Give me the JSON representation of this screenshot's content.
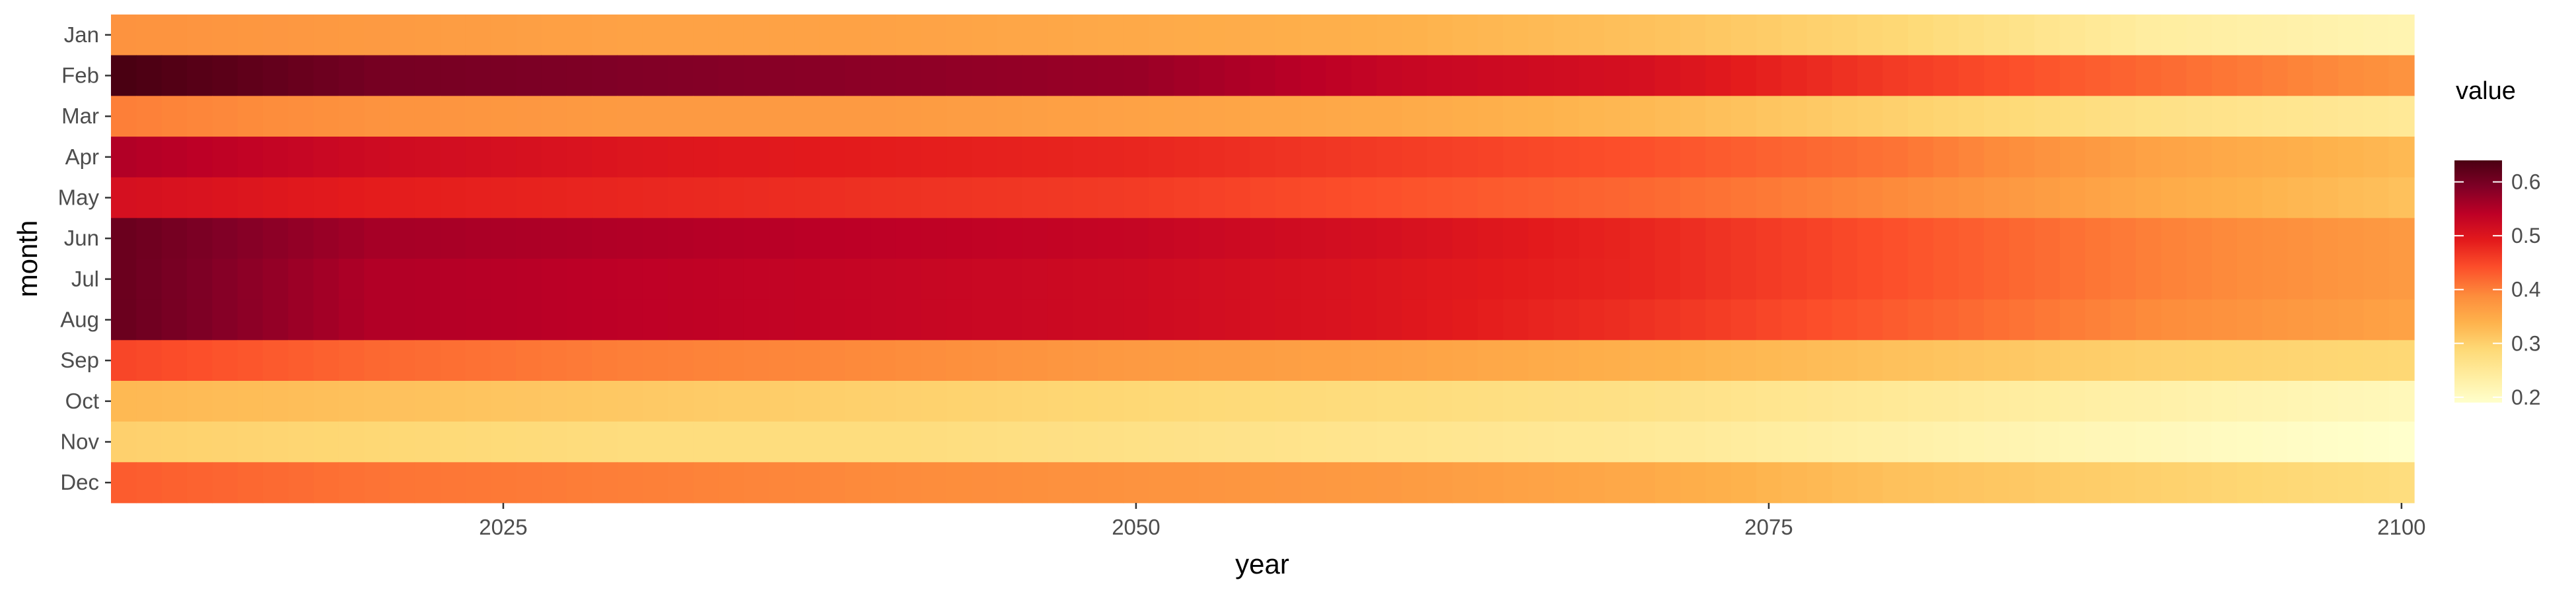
{
  "chart_data": {
    "type": "heatmap",
    "xlabel": "year",
    "ylabel": "month",
    "x_tick_labels": [
      "2025",
      "2050",
      "2075",
      "2100"
    ],
    "x_ticks": [
      2025,
      2050,
      2075,
      2100
    ],
    "xlim": [
      2009.5,
      2100.5
    ],
    "y_categories": [
      "Jan",
      "Feb",
      "Mar",
      "Apr",
      "May",
      "Jun",
      "Jul",
      "Aug",
      "Sep",
      "Oct",
      "Nov",
      "Dec"
    ],
    "x_years": {
      "start": 2010,
      "end": 2100
    },
    "value_keypoints": {
      "years": [
        2010,
        2020,
        2030,
        2040,
        2050,
        2060,
        2070,
        2080,
        2090,
        2100
      ],
      "series": [
        {
          "name": "Jan",
          "values": [
            0.38,
            0.37,
            0.36,
            0.36,
            0.35,
            0.34,
            0.32,
            0.29,
            0.24,
            0.22
          ]
        },
        {
          "name": "Feb",
          "values": [
            0.64,
            0.6,
            0.59,
            0.58,
            0.57,
            0.53,
            0.51,
            0.46,
            0.42,
            0.38
          ]
        },
        {
          "name": "Mar",
          "values": [
            0.4,
            0.38,
            0.37,
            0.37,
            0.36,
            0.35,
            0.33,
            0.3,
            0.27,
            0.25
          ]
        },
        {
          "name": "Apr",
          "values": [
            0.55,
            0.52,
            0.5,
            0.49,
            0.48,
            0.46,
            0.44,
            0.41,
            0.36,
            0.33
          ]
        },
        {
          "name": "May",
          "values": [
            0.51,
            0.49,
            0.48,
            0.47,
            0.46,
            0.44,
            0.42,
            0.39,
            0.35,
            0.32
          ]
        },
        {
          "name": "Jun",
          "values": [
            0.61,
            0.56,
            0.55,
            0.54,
            0.53,
            0.51,
            0.48,
            0.44,
            0.4,
            0.37
          ]
        },
        {
          "name": "Jul",
          "values": [
            0.61,
            0.55,
            0.54,
            0.53,
            0.52,
            0.5,
            0.48,
            0.44,
            0.4,
            0.37
          ]
        },
        {
          "name": "Aug",
          "values": [
            0.61,
            0.55,
            0.54,
            0.53,
            0.52,
            0.5,
            0.47,
            0.43,
            0.39,
            0.36
          ]
        },
        {
          "name": "Sep",
          "values": [
            0.45,
            0.42,
            0.4,
            0.39,
            0.37,
            0.36,
            0.34,
            0.32,
            0.3,
            0.29
          ]
        },
        {
          "name": "Oct",
          "values": [
            0.33,
            0.32,
            0.31,
            0.3,
            0.29,
            0.28,
            0.27,
            0.25,
            0.23,
            0.21
          ]
        },
        {
          "name": "Nov",
          "values": [
            0.3,
            0.29,
            0.28,
            0.28,
            0.27,
            0.26,
            0.25,
            0.23,
            0.21,
            0.19
          ]
        },
        {
          "name": "Dec",
          "values": [
            0.43,
            0.41,
            0.4,
            0.39,
            0.38,
            0.37,
            0.35,
            0.32,
            0.3,
            0.28
          ]
        }
      ]
    },
    "legend": {
      "title": "value",
      "placement": "right",
      "ticks": [
        0.2,
        0.3,
        0.4,
        0.5,
        0.6
      ],
      "tick_labels": [
        "0.2",
        "0.3",
        "0.4",
        "0.5",
        "0.6"
      ],
      "range": [
        0.19,
        0.64
      ]
    },
    "colorscale": {
      "name": "YlOrRd",
      "stops": [
        "#ffffcc",
        "#ffeda0",
        "#fed976",
        "#feb24c",
        "#fd8d3c",
        "#fc4e2a",
        "#e31a1c",
        "#bd0026",
        "#800026",
        "#4a0012"
      ],
      "positions": [
        0.0,
        0.11,
        0.22,
        0.33,
        0.44,
        0.56,
        0.67,
        0.78,
        0.89,
        1.0
      ]
    },
    "background": "#ebebeb",
    "grid": true
  }
}
